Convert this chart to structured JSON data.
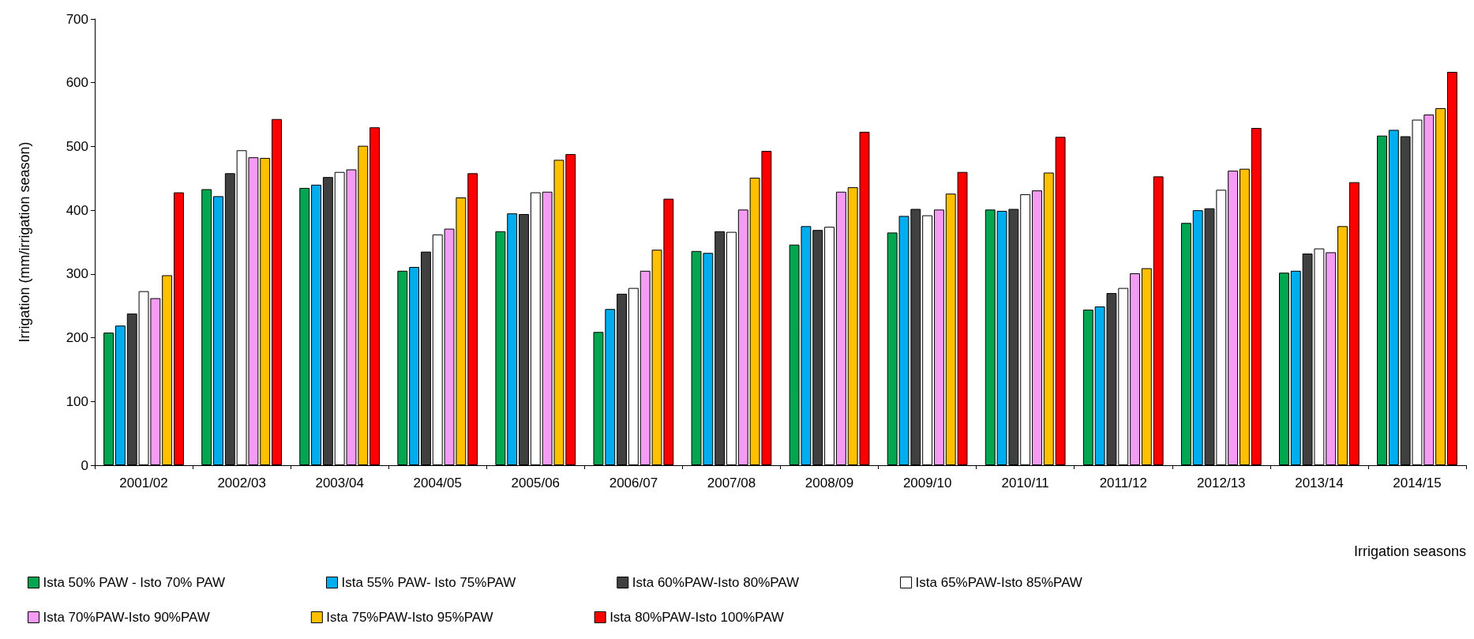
{
  "chart_data": {
    "type": "bar",
    "xlabel": "Irrigation seasons",
    "ylabel": "Irrigation (mm/irrigation season)",
    "categories": [
      "2001/02",
      "2002/03",
      "2003/04",
      "2004/05",
      "2005/06",
      "2006/07",
      "2007/08",
      "2008/09",
      "2009/10",
      "2010/11",
      "2011/12",
      "2012/13",
      "2013/14",
      "2014/15"
    ],
    "series": [
      {
        "name": "Ista 50% PAW - Isto 70% PAW",
        "color": "#00a650",
        "values": [
          208,
          433,
          435,
          305,
          367,
          209,
          336,
          346,
          365,
          401,
          244,
          380,
          302,
          517
        ]
      },
      {
        "name": "Ista 55% PAW- Isto 75%PAW",
        "color": "#00aeef",
        "values": [
          219,
          422,
          440,
          311,
          395,
          245,
          333,
          375,
          391,
          399,
          249,
          400,
          305,
          526
        ]
      },
      {
        "name": "Ista 60%PAW-Isto 80%PAW",
        "color": "#404040",
        "values": [
          238,
          458,
          452,
          335,
          394,
          269,
          367,
          369,
          402,
          402,
          270,
          403,
          332,
          516
        ]
      },
      {
        "name": "Ista 65%PAW-Isto 85%PAW",
        "color": "#ffffff",
        "values": [
          273,
          494,
          460,
          362,
          428,
          278,
          366,
          374,
          392,
          425,
          278,
          432,
          340,
          542
        ]
      },
      {
        "name": "Ista 70%PAW-Isto 90%PAW",
        "color": "#f49cf4",
        "values": [
          262,
          483,
          464,
          371,
          429,
          305,
          401,
          429,
          401,
          431,
          301,
          462,
          334,
          550
        ]
      },
      {
        "name": "Ista 75%PAW-Isto 95%PAW",
        "color": "#ffc000",
        "values": [
          298,
          482,
          501,
          420,
          479,
          338,
          451,
          436,
          426,
          459,
          309,
          465,
          375,
          560
        ]
      },
      {
        "name": "Ista 80%PAW-Isto 100%PAW",
        "color": "#ff0000",
        "values": [
          428,
          543,
          530,
          458,
          488,
          418,
          493,
          523,
          460,
          515,
          453,
          529,
          444,
          617
        ]
      }
    ],
    "ylim": [
      0,
      700
    ],
    "yticks": [
      0,
      100,
      200,
      300,
      400,
      500,
      600,
      700
    ],
    "grid": false,
    "legend": "bottom"
  }
}
